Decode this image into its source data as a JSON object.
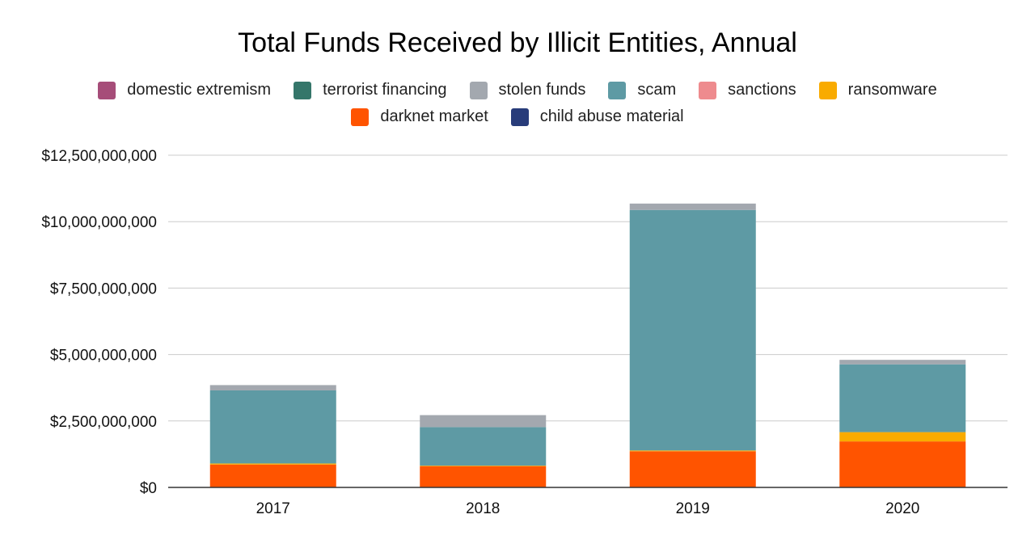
{
  "chart_data": {
    "type": "bar",
    "stacked": true,
    "title": "Total Funds Received by Illicit Entities, Annual",
    "xlabel": "",
    "ylabel": "",
    "categories": [
      "2017",
      "2018",
      "2019",
      "2020"
    ],
    "ylim": [
      0,
      12500000000
    ],
    "yticks": [
      0,
      2500000000,
      5000000000,
      7500000000,
      10000000000,
      12500000000
    ],
    "ytick_labels": [
      "$0",
      "$2,500,000,000",
      "$5,000,000,000",
      "$7,500,000,000",
      "$10,000,000,000",
      "$12,500,000,000"
    ],
    "grid": true,
    "legend_placement": "top",
    "legend": [
      {
        "name": "domestic extremism",
        "color": "#a64d79"
      },
      {
        "name": "terrorist financing",
        "color": "#35766a"
      },
      {
        "name": "stolen funds",
        "color": "#a3a8af"
      },
      {
        "name": "scam",
        "color": "#5e9aa4"
      },
      {
        "name": "sanctions",
        "color": "#ee8b8e"
      },
      {
        "name": "ransomware",
        "color": "#f9ab00"
      },
      {
        "name": "darknet market",
        "color": "#ff5400"
      },
      {
        "name": "child abuse material",
        "color": "#283c7a"
      }
    ],
    "stack_order": [
      "darknet market",
      "ransomware",
      "scam",
      "stolen funds"
    ],
    "series": [
      {
        "name": "darknet market",
        "color": "#ff5400",
        "values": [
          860000000,
          800000000,
          1360000000,
          1730000000
        ]
      },
      {
        "name": "ransomware",
        "color": "#f9ab00",
        "values": [
          40000000,
          20000000,
          30000000,
          350000000
        ]
      },
      {
        "name": "scam",
        "color": "#5e9aa4",
        "values": [
          2750000000,
          1450000000,
          9050000000,
          2550000000
        ]
      },
      {
        "name": "stolen funds",
        "color": "#a3a8af",
        "values": [
          200000000,
          450000000,
          240000000,
          170000000
        ]
      }
    ]
  }
}
